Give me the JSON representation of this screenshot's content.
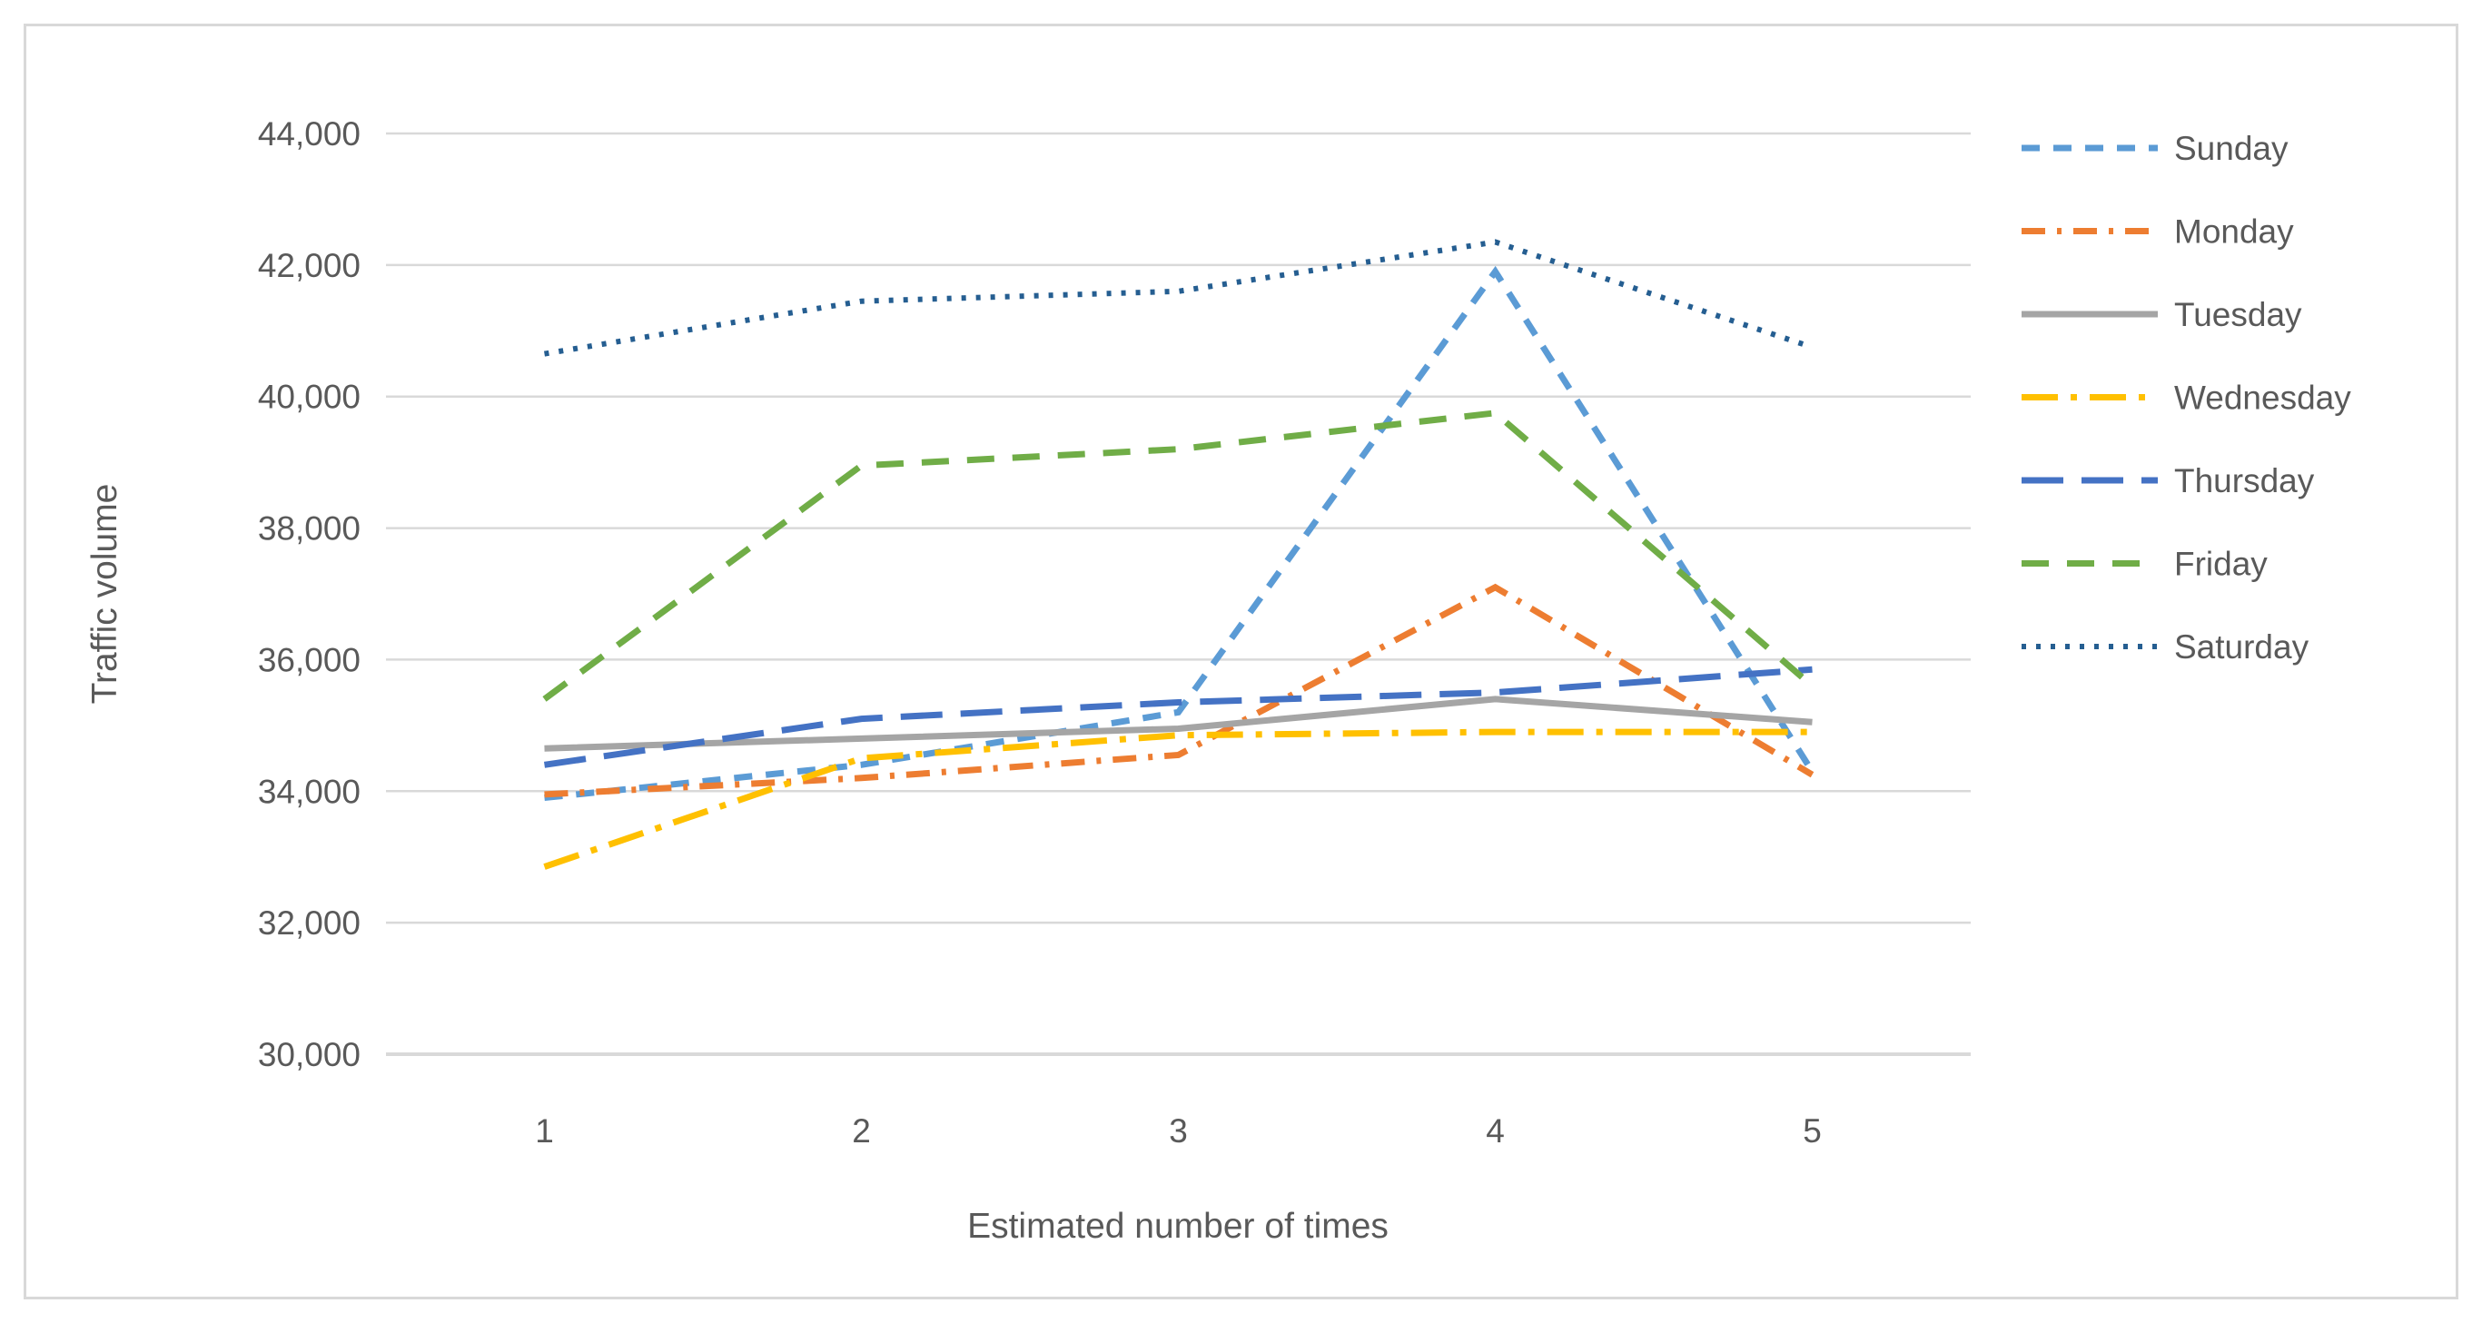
{
  "chart_data": {
    "type": "line",
    "title": "",
    "xlabel": "Estimated number of times",
    "ylabel": "Traffic volume",
    "categories": [
      "1",
      "2",
      "3",
      "4",
      "5"
    ],
    "ylim": [
      30000,
      44000
    ],
    "y_step": 2000,
    "y_tick_labels": [
      "30,000",
      "32,000",
      "34,000",
      "36,000",
      "38,000",
      "40,000",
      "42,000",
      "44,000"
    ],
    "grid": "horizontal",
    "legend_position": "right",
    "gridline_color": "#d9d9d9",
    "text_color": "#595959",
    "series": [
      {
        "name": "Sunday",
        "color": "#5B9BD5",
        "dash": "dash",
        "values": [
          33900,
          34400,
          35200,
          41900,
          34300
        ]
      },
      {
        "name": "Monday",
        "color": "#ED7D31",
        "dash": "dash-dot",
        "values": [
          33950,
          34200,
          34550,
          37100,
          34250
        ]
      },
      {
        "name": "Tuesday",
        "color": "#A5A5A5",
        "dash": "solid",
        "values": [
          34650,
          34800,
          34950,
          35400,
          35050
        ]
      },
      {
        "name": "Wednesday",
        "color": "#FFC000",
        "dash": "long-dash-dot",
        "values": [
          32850,
          34500,
          34850,
          34900,
          34900
        ]
      },
      {
        "name": "Thursday",
        "color": "#4472C4",
        "dash": "long-dash",
        "values": [
          34400,
          35100,
          35350,
          35500,
          35850
        ]
      },
      {
        "name": "Friday",
        "color": "#70AD47",
        "dash": "med-dash",
        "values": [
          35400,
          38950,
          39200,
          39750,
          35600
        ]
      },
      {
        "name": "Saturday",
        "color": "#255E91",
        "dash": "dot",
        "values": [
          40650,
          41450,
          41600,
          42350,
          40750
        ]
      }
    ]
  }
}
